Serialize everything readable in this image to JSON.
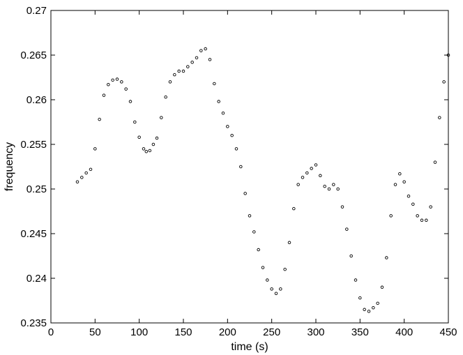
{
  "chart_data": {
    "type": "scatter",
    "title": "",
    "xlabel": "time (s)",
    "ylabel": "frequency",
    "xlim": [
      0,
      450
    ],
    "ylim": [
      0.235,
      0.27
    ],
    "xticks": [
      0,
      50,
      100,
      150,
      200,
      250,
      300,
      350,
      400,
      450
    ],
    "yticks": [
      0.235,
      0.24,
      0.245,
      0.25,
      0.255,
      0.26,
      0.265,
      0.27
    ],
    "xtick_labels": [
      "0",
      "50",
      "100",
      "150",
      "200",
      "250",
      "300",
      "350",
      "400",
      "450"
    ],
    "ytick_labels": [
      "0.235",
      "0.24",
      "0.245",
      "0.25",
      "0.255",
      "0.26",
      "0.265",
      "0.27"
    ],
    "grid": false,
    "marker": "open-circle",
    "marker_color": "#000000",
    "series": [
      {
        "x": [
          30,
          35,
          40,
          45,
          50,
          55,
          60,
          65,
          70,
          75,
          80,
          85,
          90,
          95,
          100,
          105,
          108,
          112,
          116,
          120,
          125,
          130,
          135,
          140,
          145,
          150,
          155,
          160,
          165,
          170,
          175,
          180,
          185,
          190,
          195,
          200,
          205,
          210,
          215,
          220,
          225,
          230,
          235,
          240,
          245,
          250,
          255,
          260,
          265,
          270,
          275,
          280,
          285,
          290,
          295,
          300,
          305,
          310,
          315,
          320,
          325,
          330,
          335,
          340,
          345,
          350,
          355,
          360,
          365,
          370,
          375,
          380,
          385,
          390,
          395,
          400,
          405,
          410,
          415,
          420,
          425,
          430,
          435,
          440,
          445,
          450
        ],
        "y": [
          0.2508,
          0.2513,
          0.2518,
          0.2522,
          0.2545,
          0.2578,
          0.2605,
          0.2617,
          0.2622,
          0.2623,
          0.262,
          0.2612,
          0.2598,
          0.2575,
          0.2558,
          0.2545,
          0.2542,
          0.2543,
          0.255,
          0.2557,
          0.258,
          0.2603,
          0.262,
          0.2628,
          0.2632,
          0.2632,
          0.2637,
          0.2642,
          0.2647,
          0.2655,
          0.2657,
          0.2645,
          0.2618,
          0.2598,
          0.2585,
          0.257,
          0.256,
          0.2545,
          0.2525,
          0.2495,
          0.247,
          0.2452,
          0.2432,
          0.2412,
          0.2398,
          0.2388,
          0.2383,
          0.2388,
          0.241,
          0.244,
          0.2478,
          0.2505,
          0.2513,
          0.2518,
          0.2523,
          0.2527,
          0.2515,
          0.2503,
          0.25,
          0.2505,
          0.25,
          0.248,
          0.2455,
          0.2425,
          0.2398,
          0.2378,
          0.2365,
          0.2363,
          0.2367,
          0.2372,
          0.239,
          0.2423,
          0.247,
          0.2505,
          0.2517,
          0.2508,
          0.2492,
          0.2483,
          0.247,
          0.2465,
          0.2465,
          0.248,
          0.253,
          0.258,
          0.262,
          0.265
        ]
      }
    ]
  }
}
